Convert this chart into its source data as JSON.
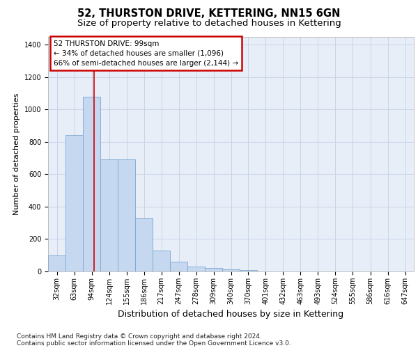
{
  "title": "52, THURSTON DRIVE, KETTERING, NN15 6GN",
  "subtitle": "Size of property relative to detached houses in Kettering",
  "xlabel": "Distribution of detached houses by size in Kettering",
  "ylabel": "Number of detached properties",
  "categories": [
    "32sqm",
    "63sqm",
    "94sqm",
    "124sqm",
    "155sqm",
    "186sqm",
    "217sqm",
    "247sqm",
    "278sqm",
    "309sqm",
    "340sqm",
    "370sqm",
    "401sqm",
    "432sqm",
    "463sqm",
    "493sqm",
    "524sqm",
    "555sqm",
    "586sqm",
    "616sqm",
    "647sqm"
  ],
  "bin_edges": [
    17.5,
    48.5,
    79.5,
    110.5,
    141.5,
    172.5,
    203.5,
    234.5,
    265.5,
    296.5,
    327.5,
    358.5,
    389.5,
    420.5,
    451.5,
    482.5,
    513.5,
    544.5,
    575.5,
    606.5,
    637.5,
    668.5
  ],
  "values": [
    100,
    840,
    1080,
    690,
    690,
    330,
    130,
    60,
    30,
    20,
    15,
    10,
    0,
    0,
    0,
    0,
    0,
    0,
    0,
    0,
    0
  ],
  "bar_color": "#c5d8f0",
  "bar_edge_color": "#7ba7d0",
  "grid_color": "#c8d4e8",
  "background_color": "#e8eef8",
  "property_line_color": "#cc0000",
  "property_line_x": 99,
  "annotation_text": "52 THURSTON DRIVE: 99sqm\n← 34% of detached houses are smaller (1,096)\n66% of semi-detached houses are larger (2,144) →",
  "annotation_box_facecolor": "#ffffff",
  "annotation_box_edgecolor": "#cc0000",
  "ylim": [
    0,
    1450
  ],
  "yticks": [
    0,
    200,
    400,
    600,
    800,
    1000,
    1200,
    1400
  ],
  "footnote_line1": "Contains HM Land Registry data © Crown copyright and database right 2024.",
  "footnote_line2": "Contains public sector information licensed under the Open Government Licence v3.0.",
  "title_fontsize": 10.5,
  "subtitle_fontsize": 9.5,
  "ylabel_fontsize": 8,
  "xlabel_fontsize": 9,
  "tick_fontsize": 7,
  "annotation_fontsize": 7.5,
  "footnote_fontsize": 6.5
}
